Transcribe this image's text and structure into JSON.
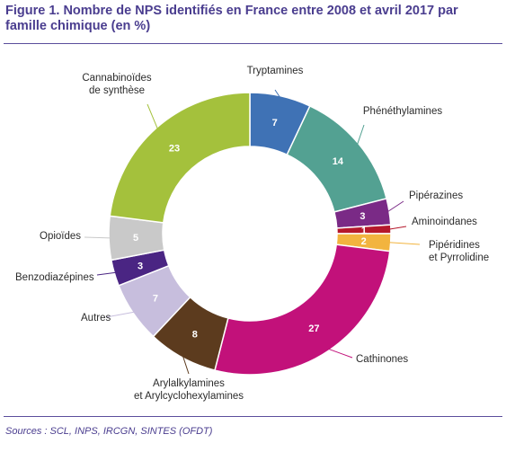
{
  "figure": {
    "title": "Figure 1. Nombre de NPS identifiés en France entre 2008 et avril 2017 par famille chimique (en %)",
    "source": "Sources : SCL, INPS, IRCGN, SINTES (OFDT)"
  },
  "chart_data": {
    "type": "pie",
    "donut": true,
    "title": "Figure 1. Nombre de NPS identifiés en France entre 2008 et avril 2017 par famille chimique (en %)",
    "unit": "%",
    "slices": [
      {
        "label": "Tryptamines",
        "value": 7,
        "color": "#3f72b5"
      },
      {
        "label": "Phénéthylamines",
        "value": 14,
        "color": "#53a192"
      },
      {
        "label": "Pipérazines",
        "value": 3,
        "color": "#7a2a86"
      },
      {
        "label": "Aminoindanes",
        "value": 1,
        "color": "#b5182c"
      },
      {
        "label": "Pipéridines et Pyrrolidine",
        "value": 2,
        "color": "#f2b43f"
      },
      {
        "label": "Cathinones",
        "value": 27,
        "color": "#c2117a"
      },
      {
        "label": "Arylalkylamines et Arylcyclohexylamines",
        "value": 8,
        "color": "#5c3b1e"
      },
      {
        "label": "Autres",
        "value": 7,
        "color": "#c7bedd"
      },
      {
        "label": "Benzodiazépines",
        "value": 3,
        "color": "#4a2583"
      },
      {
        "label": "Opioïdes",
        "value": 5,
        "color": "#c9c9c9"
      },
      {
        "label": "Cannabinoïdes de synthèse",
        "value": 23,
        "color": "#a4c13c"
      }
    ],
    "label_lines": [
      [
        "Tryptamines"
      ],
      [
        "Phénéthylamines"
      ],
      [
        "Pipérazines"
      ],
      [
        "Aminoindanes"
      ],
      [
        "Pipéridines",
        "et Pyrrolidine"
      ],
      [
        "Cathinones"
      ],
      [
        "Arylalkylamines",
        "et Arylcyclohexylamines"
      ],
      [
        "Autres"
      ],
      [
        "Benzodiazépines"
      ],
      [
        "Opioïdes"
      ],
      [
        "Cannabinoïdes",
        "de synthèse"
      ]
    ]
  }
}
